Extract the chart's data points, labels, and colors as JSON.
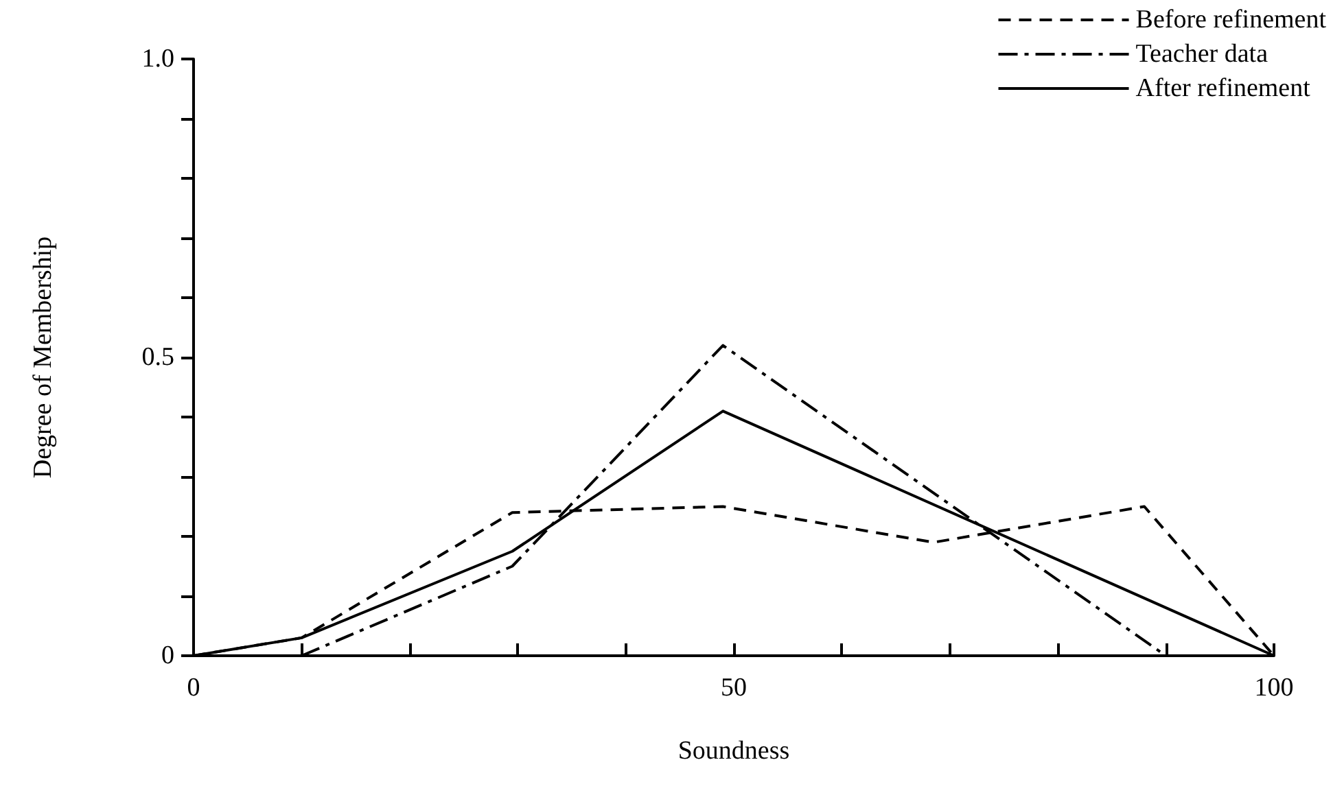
{
  "chart_data": {
    "type": "line",
    "xlabel": "Soundness",
    "ylabel": "Degree of Membership",
    "xlim": [
      0,
      100
    ],
    "ylim": [
      0,
      1
    ],
    "xticks": [
      0,
      {
        "value": 10,
        "label": null
      },
      {
        "value": 20,
        "label": null
      },
      {
        "value": 30,
        "label": null
      },
      {
        "value": 40,
        "label": null
      },
      50,
      {
        "value": 60,
        "label": null
      },
      {
        "value": 70,
        "label": null
      },
      {
        "value": 80,
        "label": null
      },
      {
        "value": 90,
        "label": null
      },
      100
    ],
    "yticks": [
      0,
      {
        "value": 0.1,
        "label": null
      },
      {
        "value": 0.2,
        "label": null
      },
      {
        "value": 0.3,
        "label": null
      },
      {
        "value": 0.4,
        "label": null
      },
      {
        "value": 0.5,
        "label": "0.5"
      },
      {
        "value": 0.6,
        "label": null
      },
      {
        "value": 0.7,
        "label": null
      },
      {
        "value": 0.8,
        "label": null
      },
      {
        "value": 0.9,
        "label": null
      },
      {
        "value": 1,
        "label": "1.0"
      }
    ],
    "grid": false,
    "legend": "top right",
    "marker": "none",
    "series": [
      {
        "name": "Before refinement",
        "color": "#000000",
        "line_style": "dashed",
        "x": [
          0,
          10,
          29.5,
          49,
          68.5,
          88,
          100
        ],
        "values": [
          0,
          0.03,
          0.24,
          0.25,
          0.19,
          0.25,
          0
        ]
      },
      {
        "name": "Teacher data",
        "color": "#000000",
        "line_style": "dashdot",
        "x": [
          10,
          29.5,
          49,
          90
        ],
        "values": [
          0,
          0.15,
          0.52,
          0
        ]
      },
      {
        "name": "After refinement",
        "color": "#000000",
        "line_style": "solid",
        "x": [
          0,
          10,
          29.5,
          49,
          100
        ],
        "values": [
          0,
          0.03,
          0.175,
          0.41,
          0
        ]
      }
    ]
  }
}
